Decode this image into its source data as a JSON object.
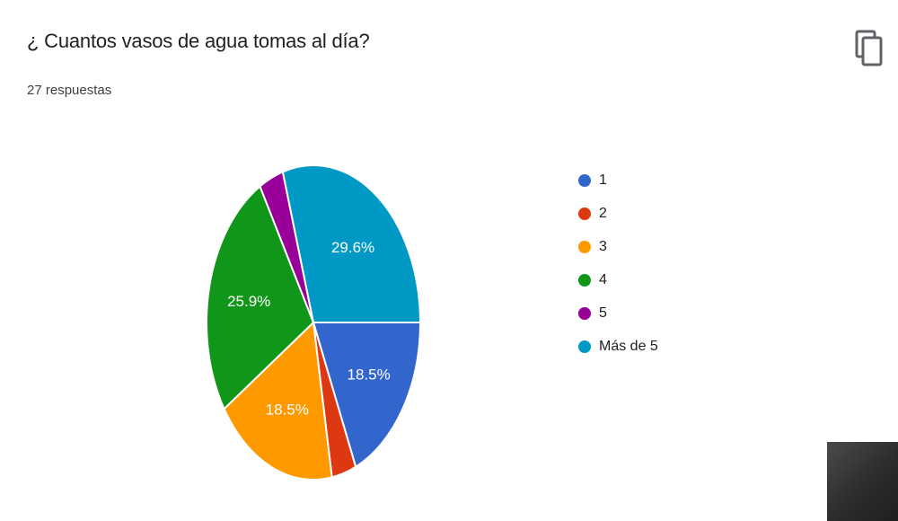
{
  "question": {
    "title": "¿ Cuantos vasos de agua tomas al día?",
    "responses": "27 respuestas"
  },
  "toolbar": {
    "copy_icon": "copy-icon"
  },
  "chart_data": {
    "type": "pie",
    "categories": [
      "1",
      "2",
      "3",
      "4",
      "5",
      "Más de 5"
    ],
    "counts": [
      5,
      1,
      5,
      7,
      1,
      8
    ],
    "values": [
      18.5,
      3.7,
      18.5,
      25.9,
      3.7,
      29.6
    ],
    "labels": [
      "18.5%",
      "",
      "18.5%",
      "25.9%",
      "",
      "29.6%"
    ],
    "colors": [
      "#3366cc",
      "#dc3912",
      "#ff9900",
      "#109618",
      "#990099",
      "#0099c6"
    ],
    "legend_position": "right"
  }
}
